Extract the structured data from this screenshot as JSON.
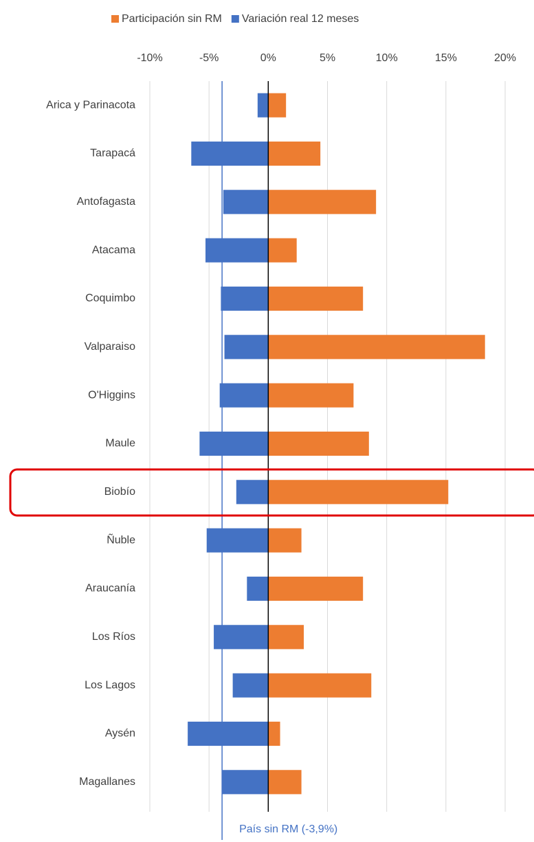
{
  "chart_data": {
    "type": "hbar",
    "categories": [
      "Arica y Parinacota",
      "Tarapacá",
      "Antofagasta",
      "Atacama",
      "Coquimbo",
      "Valparaiso",
      "O'Higgins",
      "Maule",
      "Biobío",
      "Ñuble",
      "Araucanía",
      "Los Ríos",
      "Los Lagos",
      "Aysén",
      "Magallanes"
    ],
    "series": [
      {
        "name": "Participación sin RM",
        "color": "#ed7d31",
        "values": [
          1.5,
          4.4,
          9.1,
          2.4,
          8.0,
          18.3,
          7.2,
          8.5,
          15.2,
          2.8,
          8.0,
          3.0,
          8.7,
          1.0,
          2.8
        ]
      },
      {
        "name": "Variación real 12 meses",
        "color": "#4472c4",
        "values": [
          -0.9,
          -6.5,
          -3.8,
          -5.3,
          -4.0,
          -3.7,
          -4.1,
          -5.8,
          -2.7,
          -5.2,
          -1.8,
          -4.6,
          -3.0,
          -6.8,
          -3.9
        ]
      }
    ],
    "xlim": [
      -10,
      20
    ],
    "xticks": [
      {
        "value": -10,
        "label": "-10%"
      },
      {
        "value": -5,
        "label": "-5%"
      },
      {
        "value": 0,
        "label": "0%"
      },
      {
        "value": 5,
        "label": "5%"
      },
      {
        "value": 10,
        "label": "10%"
      },
      {
        "value": 15,
        "label": "15%"
      },
      {
        "value": 20,
        "label": "20%"
      }
    ],
    "grid": true,
    "reference_line": {
      "value": -3.9,
      "label": "País sin RM (-3,9%)",
      "color": "#4472c4"
    }
  }
}
